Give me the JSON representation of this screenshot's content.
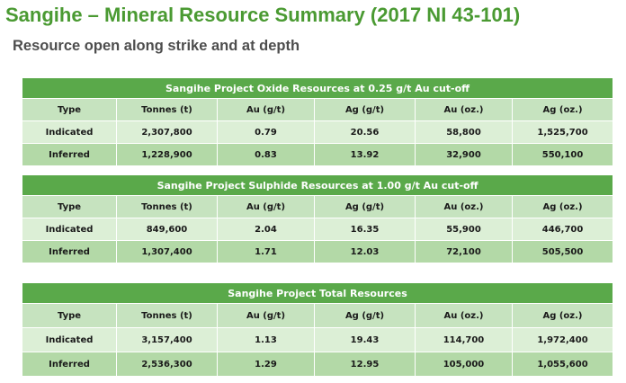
{
  "title": "Sangihe – Mineral Resource Summary (2017 NI 43-101)",
  "subtitle": "Resource open along strike and at depth",
  "columns": [
    "Type",
    "Tonnes (t)",
    "Au (g/t)",
    "Ag (g/t)",
    "Au (oz.)",
    "Ag (oz.)"
  ],
  "tables": [
    {
      "heading": "Sangihe Project Oxide Resources  at 0.25 g/t Au cut-off",
      "rows": [
        [
          "Indicated",
          "2,307,800",
          "0.79",
          "20.56",
          "58,800",
          "1,525,700"
        ],
        [
          "Inferred",
          "1,228,900",
          "0.83",
          "13.92",
          "32,900",
          "550,100"
        ]
      ]
    },
    {
      "heading": "Sangihe Project Sulphide Resources  at 1.00 g/t Au cut-off",
      "rows": [
        [
          "Indicated",
          "849,600",
          "2.04",
          "16.35",
          "55,900",
          "446,700"
        ],
        [
          "Inferred",
          "1,307,400",
          "1.71",
          "12.03",
          "72,100",
          "505,500"
        ]
      ]
    },
    {
      "heading": "Sangihe Project Total Resources",
      "rows": [
        [
          "Indicated",
          "3,157,400",
          "1.13",
          "19.43",
          "114,700",
          "1,972,400"
        ],
        [
          "Inferred",
          "2,536,300",
          "1.29",
          "12.95",
          "105,000",
          "1,055,600"
        ]
      ]
    }
  ],
  "colors": {
    "title": "#4a9a32",
    "subtitle": "#4d4d4d",
    "table_heading_bg": "#5aa94a",
    "column_header_bg": "#c6e3bf",
    "row_light_bg": "#dcefd6",
    "row_dark_bg": "#b3d9a7"
  }
}
